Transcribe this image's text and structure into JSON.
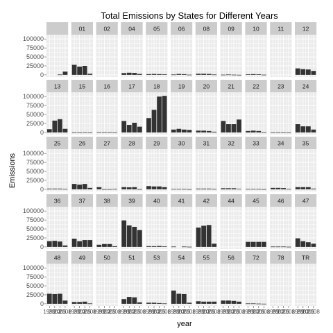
{
  "chart_data": {
    "type": "bar",
    "title": "Total Emissions by States for Different Years",
    "xlabel": "year",
    "ylabel": "Emissions",
    "x": [
      1999,
      2002,
      2005,
      2008
    ],
    "x_tick_labels": [
      "1999",
      "2002",
      "2005",
      "2008"
    ],
    "y_ticks": [
      0,
      25000,
      50000,
      75000,
      100000
    ],
    "y_tick_labels": [
      "0",
      "25000",
      "50000",
      "75000",
      "100000"
    ],
    "ylim": [
      -6000,
      112000
    ],
    "grid": true,
    "bar_color": "#333333",
    "panel_background": "#ebebeb",
    "strip_background": "#cccccc",
    "panels": [
      {
        "label": "",
        "values": [
          null,
          null,
          1000,
          9000
        ]
      },
      {
        "label": "01",
        "values": [
          28000,
          23000,
          25000,
          3000
        ]
      },
      {
        "label": "02",
        "values": [
          null,
          null,
          null,
          null
        ]
      },
      {
        "label": "04",
        "values": [
          5000,
          6000,
          5500,
          2500
        ]
      },
      {
        "label": "05",
        "values": [
          2000,
          2500,
          2000,
          1500
        ]
      },
      {
        "label": "06",
        "values": [
          1000,
          2500,
          2000,
          500
        ]
      },
      {
        "label": "08",
        "values": [
          3000,
          3000,
          2500,
          1000
        ]
      },
      {
        "label": "09",
        "values": [
          500,
          1000,
          500,
          200
        ]
      },
      {
        "label": "10",
        "values": [
          1500,
          2000,
          1500,
          500
        ]
      },
      {
        "label": "11",
        "values": [
          null,
          null,
          null,
          null
        ]
      },
      {
        "label": "12",
        "values": [
          18000,
          16000,
          15000,
          11000
        ]
      },
      {
        "label": "13",
        "values": [
          9000,
          33000,
          37000,
          10000
        ]
      },
      {
        "label": "15",
        "values": [
          500,
          500,
          500,
          200
        ]
      },
      {
        "label": "16",
        "values": [
          1000,
          1000,
          1000,
          500
        ]
      },
      {
        "label": "17",
        "values": [
          32000,
          21000,
          27000,
          16000
        ]
      },
      {
        "label": "18",
        "values": [
          40000,
          63000,
          100000,
          102000
        ]
      },
      {
        "label": "19",
        "values": [
          8000,
          10000,
          8000,
          7000
        ]
      },
      {
        "label": "20",
        "values": [
          5000,
          5000,
          4000,
          2000
        ]
      },
      {
        "label": "21",
        "values": [
          32000,
          23000,
          23000,
          36000
        ]
      },
      {
        "label": "22",
        "values": [
          4000,
          5000,
          4000,
          1000
        ]
      },
      {
        "label": "23",
        "values": [
          500,
          500,
          500,
          200
        ]
      },
      {
        "label": "24",
        "values": [
          23000,
          17000,
          17000,
          8000
        ]
      },
      {
        "label": "25",
        "values": [
          2000,
          2000,
          2000,
          1000
        ]
      },
      {
        "label": "26",
        "values": [
          15000,
          13000,
          15000,
          4000
        ]
      },
      {
        "label": "27",
        "values": [
          6000,
          500,
          500,
          1000
        ]
      },
      {
        "label": "28",
        "values": [
          6000,
          5500,
          6000,
          500
        ]
      },
      {
        "label": "29",
        "values": [
          9000,
          8000,
          8000,
          6000
        ]
      },
      {
        "label": "30",
        "values": [
          1000,
          1000,
          1000,
          500
        ]
      },
      {
        "label": "31",
        "values": [
          2000,
          2000,
          2000,
          1000
        ]
      },
      {
        "label": "32",
        "values": [
          3000,
          3000,
          3000,
          1500
        ]
      },
      {
        "label": "33",
        "values": [
          1000,
          1000,
          1000,
          500
        ]
      },
      {
        "label": "34",
        "values": [
          4000,
          4000,
          3500,
          1000
        ]
      },
      {
        "label": "35",
        "values": [
          6000,
          6000,
          6000,
          2000
        ]
      },
      {
        "label": "36",
        "values": [
          16000,
          17000,
          15000,
          4000
        ]
      },
      {
        "label": "37",
        "values": [
          23000,
          16000,
          19000,
          19000
        ]
      },
      {
        "label": "38",
        "values": [
          6000,
          8000,
          8000,
          2000
        ]
      },
      {
        "label": "39",
        "values": [
          74000,
          60000,
          56000,
          47000
        ]
      },
      {
        "label": "40",
        "values": [
          2000,
          2000,
          2500,
          1500
        ]
      },
      {
        "label": "41",
        "values": [
          1000,
          null,
          1000,
          500
        ]
      },
      {
        "label": "42",
        "values": [
          54000,
          59000,
          61000,
          9000
        ]
      },
      {
        "label": "44",
        "values": [
          null,
          null,
          null,
          null
        ]
      },
      {
        "label": "45",
        "values": [
          14000,
          14000,
          14000,
          14000
        ]
      },
      {
        "label": "46",
        "values": [
          1000,
          1000,
          1000,
          500
        ]
      },
      {
        "label": "47",
        "values": [
          24000,
          16000,
          13000,
          9000
        ]
      },
      {
        "label": "48",
        "values": [
          28000,
          27000,
          28000,
          9000
        ]
      },
      {
        "label": "49",
        "values": [
          5000,
          5000,
          6000,
          1000
        ]
      },
      {
        "label": "50",
        "values": [
          null,
          null,
          null,
          null
        ]
      },
      {
        "label": "51",
        "values": [
          13000,
          19000,
          18000,
          4000
        ]
      },
      {
        "label": "53",
        "values": [
          3000,
          3000,
          2000,
          1000
        ]
      },
      {
        "label": "54",
        "values": [
          37000,
          28000,
          27000,
          3000
        ]
      },
      {
        "label": "55",
        "values": [
          7000,
          6000,
          6000,
          6000
        ]
      },
      {
        "label": "56",
        "values": [
          9000,
          9000,
          8000,
          6000
        ]
      },
      {
        "label": "72",
        "values": [
          1000,
          1000,
          500,
          200
        ]
      },
      {
        "label": "78",
        "values": [
          null,
          null,
          null,
          null
        ]
      },
      {
        "label": "TR",
        "values": [
          null,
          null,
          null,
          null
        ]
      }
    ]
  }
}
